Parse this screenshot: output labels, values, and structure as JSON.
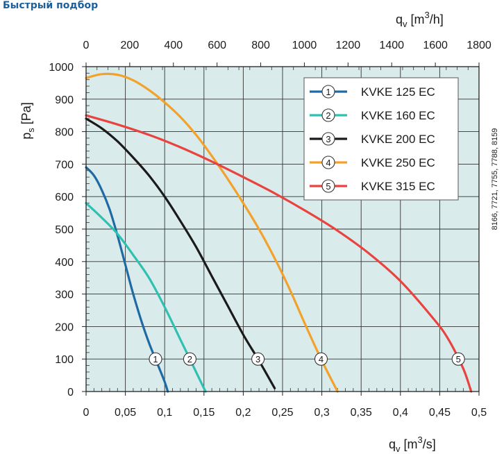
{
  "page": {
    "heading": "Быстрый подбор",
    "code_note": "8166, 7721, 7755, 7788, 8159"
  },
  "chart_data": {
    "type": "line",
    "xlabel": {
      "main": "q",
      "sub": "v",
      "unit_open": "[m",
      "unit_sup": "3",
      "unit_close": "/s]"
    },
    "x2label": {
      "main": "q",
      "sub": "v",
      "unit_open": "[m",
      "unit_sup": "3",
      "unit_close": "/h]"
    },
    "ylabel": {
      "main": "p",
      "sub": "s",
      "unit": "[Pa]"
    },
    "xlim": [
      0,
      0.5
    ],
    "ylim": [
      0,
      1000
    ],
    "x2lim": [
      0,
      1800
    ],
    "x_ticks": [
      0,
      0.05,
      0.1,
      0.15,
      0.2,
      0.25,
      0.3,
      0.35,
      0.4,
      0.45,
      0.5
    ],
    "x_tick_labels": [
      "0",
      "0,05",
      "0,1",
      "0,15",
      "0,2",
      "0,25",
      "0,3",
      "0,35",
      "0,4",
      "0,45",
      "0,5"
    ],
    "x2_ticks": [
      0,
      200,
      400,
      600,
      800,
      1000,
      1200,
      1400,
      1600,
      1800
    ],
    "x2_tick_labels": [
      "0",
      "200",
      "400",
      "600",
      "800",
      "1000",
      "1200",
      "1400",
      "1600",
      "1800"
    ],
    "y_ticks": [
      0,
      100,
      200,
      300,
      400,
      500,
      600,
      700,
      800,
      900,
      1000
    ],
    "y_tick_labels": [
      "0",
      "100",
      "200",
      "300",
      "400",
      "500",
      "600",
      "700",
      "800",
      "900",
      "1000"
    ],
    "grid": true,
    "background_color": "#d9ebea",
    "legend_position": "top-right",
    "series": [
      {
        "name": "KVKE 125 EC",
        "number": "1",
        "color": "#1f6aa5",
        "marker_y": 100,
        "points": [
          [
            0,
            690
          ],
          [
            0.01,
            665
          ],
          [
            0.02,
            620
          ],
          [
            0.03,
            560
          ],
          [
            0.04,
            480
          ],
          [
            0.05,
            390
          ],
          [
            0.06,
            300
          ],
          [
            0.07,
            220
          ],
          [
            0.08,
            150
          ],
          [
            0.09,
            90
          ],
          [
            0.1,
            30
          ],
          [
            0.104,
            0
          ]
        ]
      },
      {
        "name": "KVKE 160 EC",
        "number": "2",
        "color": "#2ec0b0",
        "marker_y": 100,
        "points": [
          [
            0,
            580
          ],
          [
            0.02,
            535
          ],
          [
            0.04,
            485
          ],
          [
            0.06,
            420
          ],
          [
            0.08,
            350
          ],
          [
            0.1,
            260
          ],
          [
            0.12,
            160
          ],
          [
            0.13,
            110
          ],
          [
            0.14,
            60
          ],
          [
            0.152,
            0
          ]
        ]
      },
      {
        "name": "KVKE 200 EC",
        "number": "3",
        "color": "#1a1a1a",
        "marker_y": 100,
        "points": [
          [
            0,
            840
          ],
          [
            0.02,
            810
          ],
          [
            0.04,
            770
          ],
          [
            0.06,
            720
          ],
          [
            0.08,
            665
          ],
          [
            0.1,
            600
          ],
          [
            0.12,
            525
          ],
          [
            0.14,
            445
          ],
          [
            0.16,
            355
          ],
          [
            0.18,
            265
          ],
          [
            0.2,
            175
          ],
          [
            0.22,
            95
          ],
          [
            0.24,
            10
          ]
        ]
      },
      {
        "name": "KVKE 250 EC",
        "number": "4",
        "color": "#f3a12a",
        "marker_y": 100,
        "points": [
          [
            0,
            965
          ],
          [
            0.02,
            977
          ],
          [
            0.04,
            975
          ],
          [
            0.06,
            958
          ],
          [
            0.08,
            928
          ],
          [
            0.1,
            890
          ],
          [
            0.12,
            845
          ],
          [
            0.14,
            790
          ],
          [
            0.16,
            725
          ],
          [
            0.18,
            655
          ],
          [
            0.2,
            580
          ],
          [
            0.22,
            500
          ],
          [
            0.24,
            410
          ],
          [
            0.26,
            310
          ],
          [
            0.28,
            200
          ],
          [
            0.3,
            95
          ],
          [
            0.32,
            0
          ]
        ]
      },
      {
        "name": "KVKE 315 EC",
        "number": "5",
        "color": "#e8433e",
        "marker_y": 100,
        "points": [
          [
            0,
            850
          ],
          [
            0.04,
            822
          ],
          [
            0.08,
            790
          ],
          [
            0.12,
            752
          ],
          [
            0.16,
            708
          ],
          [
            0.2,
            660
          ],
          [
            0.24,
            610
          ],
          [
            0.28,
            555
          ],
          [
            0.32,
            495
          ],
          [
            0.36,
            425
          ],
          [
            0.4,
            340
          ],
          [
            0.44,
            230
          ],
          [
            0.46,
            165
          ],
          [
            0.48,
            70
          ],
          [
            0.49,
            0
          ]
        ]
      }
    ]
  }
}
